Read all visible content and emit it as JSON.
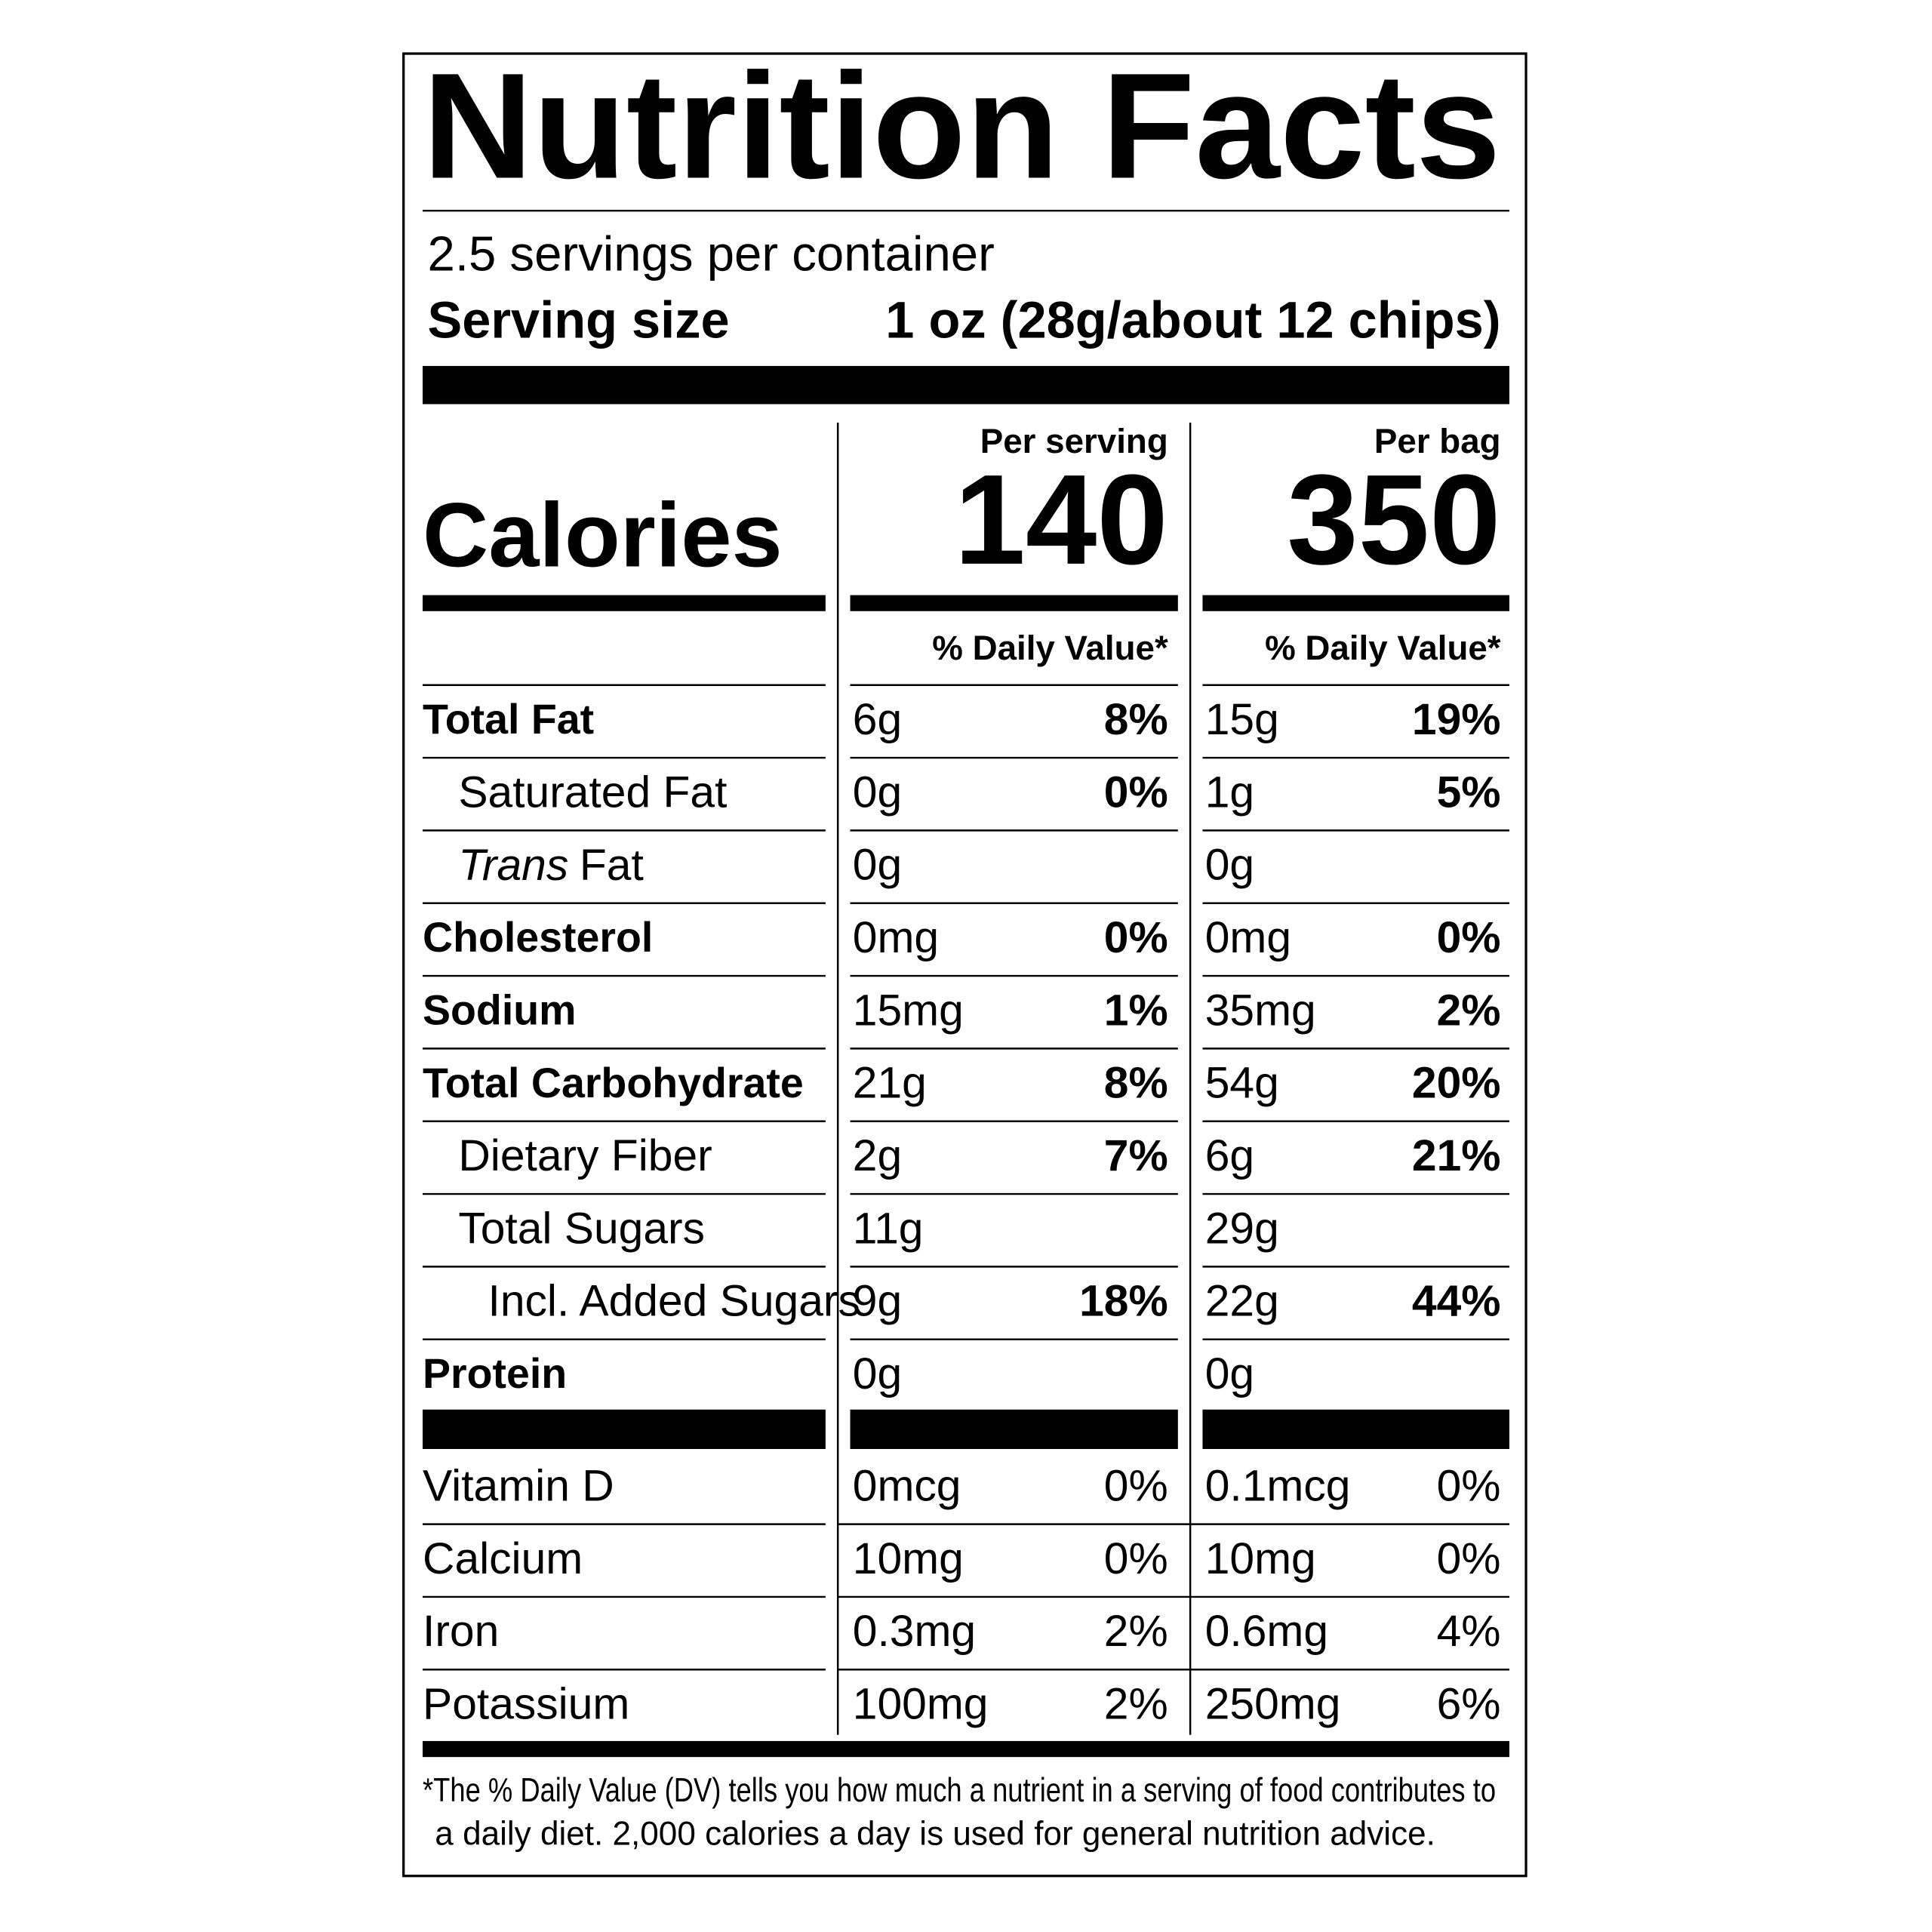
{
  "title": "Nutrition Facts",
  "servings_per_container": "2.5 servings per container",
  "serving_size": {
    "label": "Serving size",
    "value": "1 oz (28g/about 12 chips)"
  },
  "calories": {
    "label": "Calories",
    "columns": [
      {
        "heading": "Per serving",
        "value": "140",
        "dv_heading": "% Daily Value*"
      },
      {
        "heading": "Per bag",
        "value": "350",
        "dv_heading": "% Daily Value*"
      }
    ]
  },
  "nutrients": [
    {
      "name": "Total Fat",
      "per_serving": {
        "amount": "6g",
        "dv": "8%"
      },
      "per_bag": {
        "amount": "15g",
        "dv": "19%"
      }
    },
    {
      "name": "Saturated Fat",
      "per_serving": {
        "amount": "0g",
        "dv": "0%"
      },
      "per_bag": {
        "amount": "1g",
        "dv": "5%"
      }
    },
    {
      "name": [
        "Trans",
        "Fat"
      ],
      "per_serving": {
        "amount": "0g"
      },
      "per_bag": {
        "amount": "0g"
      }
    },
    {
      "name": "Cholesterol",
      "per_serving": {
        "amount": "0mg",
        "dv": "0%"
      },
      "per_bag": {
        "amount": "0mg",
        "dv": "0%"
      }
    },
    {
      "name": "Sodium",
      "per_serving": {
        "amount": "15mg",
        "dv": "1%"
      },
      "per_bag": {
        "amount": "35mg",
        "dv": "2%"
      }
    },
    {
      "name": "Total Carbohydrate",
      "per_serving": {
        "amount": "21g",
        "dv": "8%"
      },
      "per_bag": {
        "amount": "54g",
        "dv": "20%"
      }
    },
    {
      "name": "Dietary Fiber",
      "per_serving": {
        "amount": "2g",
        "dv": "7%"
      },
      "per_bag": {
        "amount": "6g",
        "dv": "21%"
      }
    },
    {
      "name": "Total Sugars",
      "per_serving": {
        "amount": "11g"
      },
      "per_bag": {
        "amount": "29g"
      }
    },
    {
      "name": "Incl. Added Sugars",
      "per_serving": {
        "amount": "9g",
        "dv": "18%"
      },
      "per_bag": {
        "amount": "22g",
        "dv": "44%"
      }
    },
    {
      "name": "Protein",
      "per_serving": {
        "amount": "0g"
      },
      "per_bag": {
        "amount": "0g"
      }
    }
  ],
  "vitamins": [
    {
      "name": "Vitamin D",
      "per_serving": {
        "amount": "0mcg",
        "dv": "0%"
      },
      "per_bag": {
        "amount": "0.1mcg",
        "dv": "0%"
      }
    },
    {
      "name": "Calcium",
      "per_serving": {
        "amount": "10mg",
        "dv": "0%"
      },
      "per_bag": {
        "amount": "10mg",
        "dv": "0%"
      }
    },
    {
      "name": "Iron",
      "per_serving": {
        "amount": "0.3mg",
        "dv": "2%"
      },
      "per_bag": {
        "amount": "0.6mg",
        "dv": "4%"
      }
    },
    {
      "name": "Potassium",
      "per_serving": {
        "amount": "100mg",
        "dv": "2%"
      },
      "per_bag": {
        "amount": "250mg",
        "dv": "6%"
      }
    }
  ],
  "footnote": [
    "*The % Daily Value (DV) tells you how much a nutrient in a serving of food contributes to",
    "a daily diet. 2,000 calories a day is used for general nutrition advice."
  ]
}
